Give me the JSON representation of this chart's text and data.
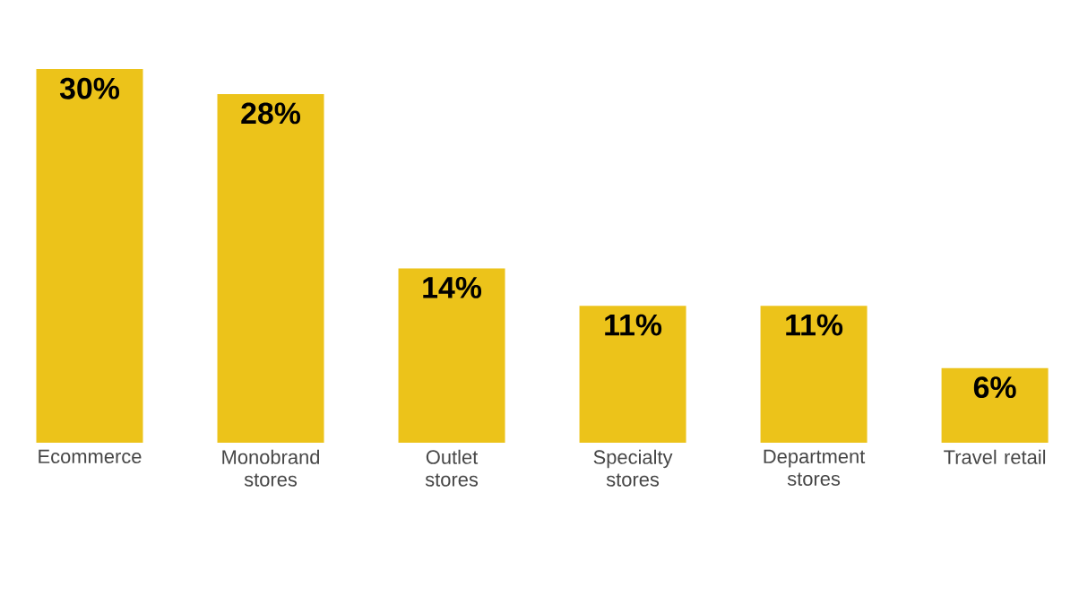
{
  "chart_data": {
    "type": "bar",
    "categories": [
      "Ecommerce",
      "Monobrand stores",
      "Outlet stores",
      "Specialty stores",
      "Department stores",
      "Travel retail"
    ],
    "values": [
      30,
      28,
      14,
      11,
      11,
      6
    ],
    "value_labels": [
      "30%",
      "28%",
      "14%",
      "11%",
      "11%",
      "6%"
    ],
    "color": "#ecc31a"
  }
}
